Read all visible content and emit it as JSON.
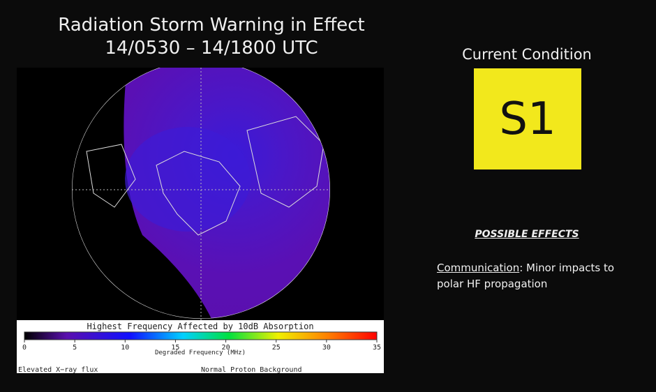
{
  "header": {
    "title_line1": "Radiation Storm Warning in Effect",
    "title_line2": "14/0530 – 14/1800 UTC"
  },
  "map": {
    "colorbar_title": "Highest Frequency Affected by 10dB Absorption",
    "colorbar_ticks": [
      0,
      5,
      10,
      15,
      20,
      25,
      30,
      35
    ],
    "colorbar_label": "Degraded Frequency (MHz)",
    "footer_left": "Elevated X−ray flux",
    "footer_right": "Normal Proton Background"
  },
  "condition": {
    "heading": "Current Condition",
    "level": "S1"
  },
  "effects": {
    "heading": "POSSIBLE EFFECTS",
    "label": "Communication",
    "text": ": Minor impacts to polar HF propagation"
  }
}
